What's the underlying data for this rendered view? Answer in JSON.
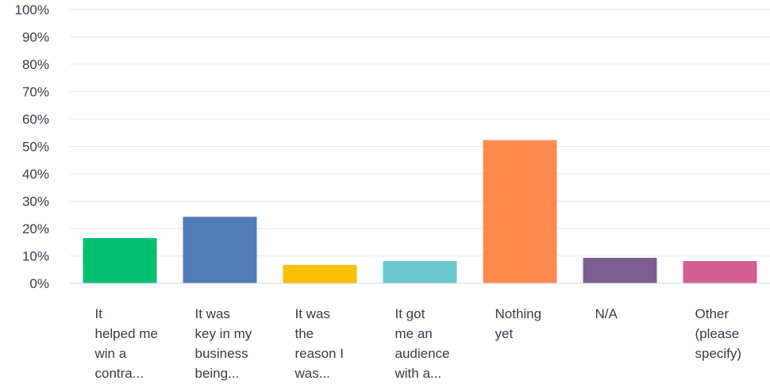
{
  "chart_data": {
    "type": "bar",
    "categories": [
      "It helped me win a contra...",
      "It was key in my business being...",
      "It was the reason I was...",
      "It got me an audience with a...",
      "Nothing yet",
      "N/A",
      "Other (please specify)"
    ],
    "category_lines": [
      [
        "It",
        "helped me",
        "win a",
        "contra..."
      ],
      [
        "It was",
        "key in my",
        "business",
        "being..."
      ],
      [
        "It was",
        "the",
        "reason I",
        "was..."
      ],
      [
        "It got",
        "me an",
        "audience",
        "with a..."
      ],
      [
        "Nothing",
        "yet"
      ],
      [
        "N/A"
      ],
      [
        "Other",
        "(please",
        "specify)"
      ]
    ],
    "values": [
      16.5,
      24.3,
      6.7,
      8.1,
      52.3,
      9.3,
      8.1
    ],
    "colors": [
      "#00bf6f",
      "#507cb6",
      "#f9be00",
      "#6bc8cd",
      "#ff8b4f",
      "#7d5e90",
      "#d25f90"
    ],
    "yticks": [
      "0%",
      "10%",
      "20%",
      "30%",
      "40%",
      "50%",
      "60%",
      "70%",
      "80%",
      "90%",
      "100%"
    ],
    "ylim": [
      0,
      100
    ],
    "grid": true,
    "title": "",
    "xlabel": "",
    "ylabel": ""
  }
}
